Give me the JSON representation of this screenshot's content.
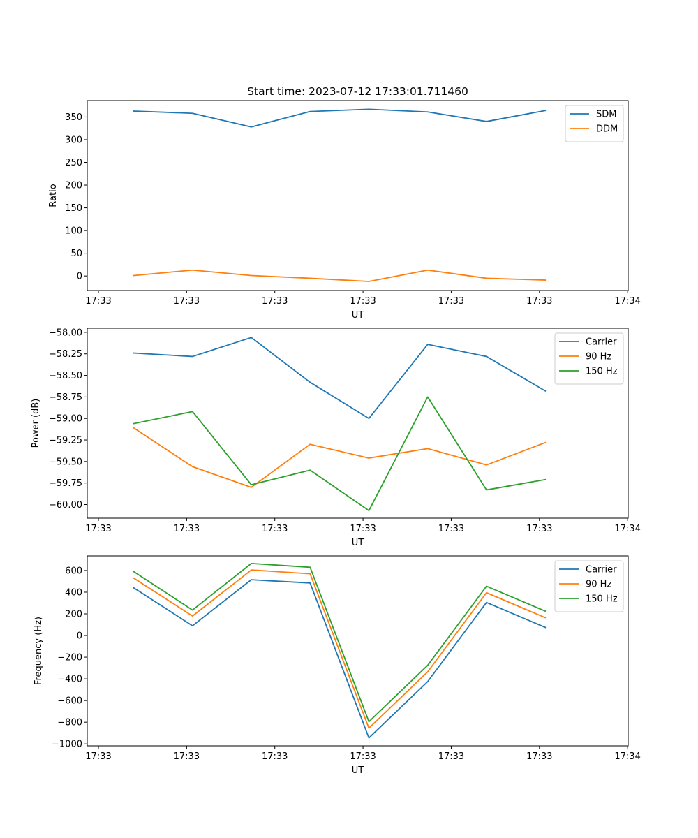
{
  "figure": {
    "title": "Start time: 2023-07-12 17:33:01.711460"
  },
  "chart_data": [
    {
      "type": "line",
      "title": "Start time: 2023-07-12 17:33:01.711460",
      "xlabel": "UT",
      "ylabel": "Ratio",
      "x": [
        1,
        2,
        3,
        4,
        5,
        6,
        7,
        8
      ],
      "xlim": [
        0.21,
        9.41
      ],
      "x_ticks": [
        0.4,
        1.9,
        3.4,
        4.9,
        6.4,
        7.9,
        9.4
      ],
      "x_tick_labels": [
        "17:33",
        "17:33",
        "17:33",
        "17:33",
        "17:33",
        "17:33",
        "17:34"
      ],
      "ylim": [
        -32,
        386
      ],
      "y_ticks": [
        0,
        50,
        100,
        150,
        200,
        250,
        300,
        350
      ],
      "y_tick_labels": [
        "0",
        "50",
        "100",
        "150",
        "200",
        "250",
        "300",
        "350"
      ],
      "legend_position": "top-right",
      "series": [
        {
          "name": "SDM",
          "color": "#1f77b4",
          "values": [
            363,
            358,
            328,
            362,
            367,
            361,
            340,
            364
          ]
        },
        {
          "name": "DDM",
          "color": "#ff7f0e",
          "values": [
            1,
            13,
            1,
            -5,
            -12,
            13,
            -5,
            -9
          ]
        }
      ]
    },
    {
      "type": "line",
      "xlabel": "UT",
      "ylabel": "Power (dB)",
      "x": [
        1,
        2,
        3,
        4,
        5,
        6,
        7,
        8
      ],
      "xlim": [
        0.21,
        9.41
      ],
      "x_ticks": [
        0.4,
        1.9,
        3.4,
        4.9,
        6.4,
        7.9,
        9.4
      ],
      "x_tick_labels": [
        "17:33",
        "17:33",
        "17:33",
        "17:33",
        "17:33",
        "17:33",
        "17:34"
      ],
      "ylim": [
        -60.158,
        -57.952
      ],
      "y_ticks": [
        -60.0,
        -59.75,
        -59.5,
        -59.25,
        -59.0,
        -58.75,
        -58.5,
        -58.25,
        -58.0
      ],
      "y_tick_labels": [
        "−60.00",
        "−59.75",
        "−59.50",
        "−59.25",
        "−59.00",
        "−58.75",
        "−58.50",
        "−58.25",
        "−58.00"
      ],
      "legend_position": "top-right",
      "series": [
        {
          "name": "Carrier",
          "color": "#1f77b4",
          "values": [
            -58.24,
            -58.28,
            -58.06,
            -58.58,
            -59.0,
            -58.14,
            -58.28,
            -58.68
          ]
        },
        {
          "name": "90 Hz",
          "color": "#ff7f0e",
          "values": [
            -59.11,
            -59.56,
            -59.8,
            -59.3,
            -59.46,
            -59.35,
            -59.54,
            -59.28
          ]
        },
        {
          "name": "150 Hz",
          "color": "#2ca02c",
          "values": [
            -59.06,
            -58.92,
            -59.77,
            -59.6,
            -60.07,
            -58.75,
            -59.83,
            -59.71
          ]
        }
      ]
    },
    {
      "type": "line",
      "xlabel": "UT",
      "ylabel": "Frequency (Hz)",
      "x": [
        1,
        2,
        3,
        4,
        5,
        6,
        7,
        8
      ],
      "xlim": [
        0.21,
        9.41
      ],
      "x_ticks": [
        0.4,
        1.9,
        3.4,
        4.9,
        6.4,
        7.9,
        9.4
      ],
      "x_tick_labels": [
        "17:33",
        "17:33",
        "17:33",
        "17:33",
        "17:33",
        "17:33",
        "17:34"
      ],
      "ylim": [
        -1018,
        735
      ],
      "y_ticks": [
        -1000,
        -800,
        -600,
        -400,
        -200,
        0,
        200,
        400,
        600
      ],
      "y_tick_labels": [
        "−1000",
        "−800",
        "−600",
        "−400",
        "−200",
        "0",
        "200",
        "400",
        "600"
      ],
      "legend_position": "top-right",
      "series": [
        {
          "name": "Carrier",
          "color": "#1f77b4",
          "values": [
            440,
            90,
            515,
            485,
            -945,
            -425,
            305,
            75
          ]
        },
        {
          "name": "90 Hz",
          "color": "#ff7f0e",
          "values": [
            530,
            180,
            605,
            570,
            -855,
            -335,
            395,
            165
          ]
        },
        {
          "name": "150 Hz",
          "color": "#2ca02c",
          "values": [
            590,
            235,
            665,
            630,
            -795,
            -275,
            455,
            225
          ]
        }
      ]
    }
  ]
}
